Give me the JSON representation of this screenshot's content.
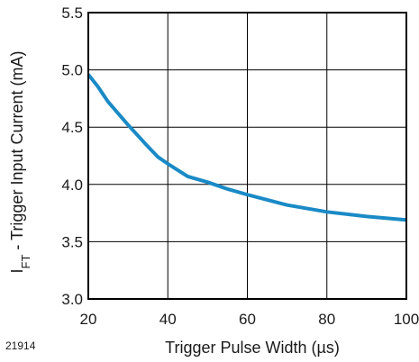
{
  "figure_id": "21914",
  "chart_data": {
    "type": "line",
    "xlabel": "Trigger Pulse Width (µs)",
    "ylabel": {
      "prefix": "I",
      "subscript": "FT",
      "rest": " - Trigger Input Current (mA)"
    },
    "xlim": [
      20,
      100
    ],
    "ylim": [
      3.0,
      5.5
    ],
    "xticks": [
      20,
      40,
      60,
      80,
      100
    ],
    "yticks": [
      3.0,
      3.5,
      4.0,
      4.5,
      5.0,
      5.5
    ],
    "xtick_labels": [
      "20",
      "40",
      "60",
      "80",
      "100"
    ],
    "ytick_labels": [
      "3.0",
      "3.5",
      "4.0",
      "4.5",
      "5.0",
      "5.5"
    ],
    "grid": true,
    "series": [
      {
        "color": "#1a8ac6",
        "x": [
          20,
          22.5,
          25,
          30,
          35,
          37.5,
          40,
          45,
          50,
          55,
          60,
          70,
          80,
          90,
          100
        ],
        "y": [
          4.96,
          4.85,
          4.72,
          4.52,
          4.33,
          4.24,
          4.18,
          4.07,
          4.02,
          3.96,
          3.91,
          3.82,
          3.76,
          3.72,
          3.69
        ]
      }
    ]
  }
}
